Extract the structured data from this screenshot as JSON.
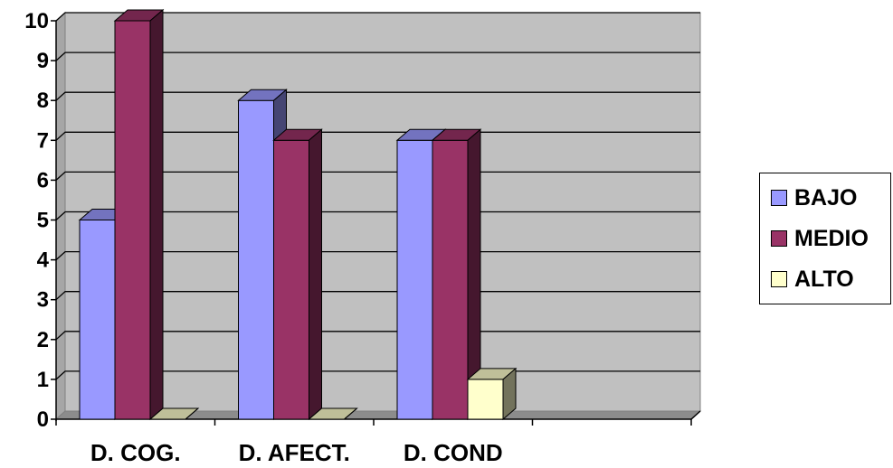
{
  "chart_data": {
    "type": "bar",
    "title": "",
    "xlabel": "",
    "ylabel": "",
    "categories": [
      "D. COG.",
      "D. AFECT.",
      "D. COND",
      ""
    ],
    "series": [
      {
        "name": "BAJO",
        "values": [
          5,
          8,
          7,
          0
        ],
        "color": "#9999ff"
      },
      {
        "name": "MEDIO",
        "values": [
          10,
          7,
          7,
          0
        ],
        "color": "#993366"
      },
      {
        "name": "ALTO",
        "values": [
          0,
          0,
          1,
          0
        ],
        "color": "#ffffcc"
      }
    ],
    "ylim": [
      0,
      10
    ],
    "yticks": [
      0,
      1,
      2,
      3,
      4,
      5,
      6,
      7,
      8,
      9,
      10
    ],
    "grid": true,
    "legend_position": "right",
    "plot_background": "#c0c0c0"
  }
}
